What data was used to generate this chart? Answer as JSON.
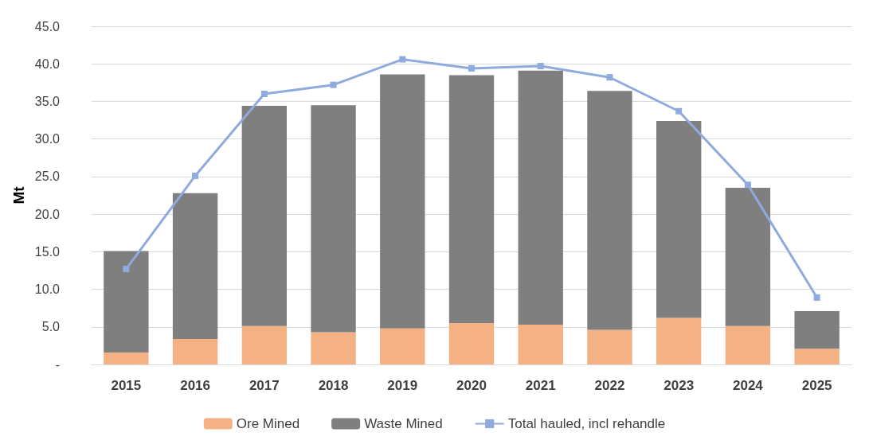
{
  "chart_data": {
    "type": "bar",
    "ylabel": "Mt",
    "stacked": true,
    "grid": "y",
    "legend": "bottom",
    "marker": "square",
    "categories": [
      "2015",
      "2016",
      "2017",
      "2018",
      "2019",
      "2020",
      "2021",
      "2022",
      "2023",
      "2024",
      "2025"
    ],
    "ylim": [
      0,
      45
    ],
    "yticks": [
      {
        "value": 0,
        "label": "-"
      },
      {
        "value": 5,
        "label": "5.0"
      },
      {
        "value": 10,
        "label": "10.0"
      },
      {
        "value": 15,
        "label": "15.0"
      },
      {
        "value": 20,
        "label": "20.0"
      },
      {
        "value": 25,
        "label": "25.0"
      },
      {
        "value": 30,
        "label": "30.0"
      },
      {
        "value": 35,
        "label": "35.0"
      },
      {
        "value": 40,
        "label": "40.0"
      },
      {
        "value": 45,
        "label": "45.0"
      }
    ],
    "series": [
      {
        "name": "Ore Mined",
        "color": "#f4b183",
        "values": [
          1.6,
          3.4,
          5.1,
          4.3,
          4.8,
          5.5,
          5.3,
          4.6,
          6.2,
          5.1,
          2.1
        ]
      },
      {
        "name": "Waste Mined",
        "color": "#7f7f7f",
        "values": [
          13.5,
          19.4,
          29.3,
          30.2,
          33.8,
          33.0,
          33.8,
          31.8,
          26.2,
          18.4,
          5.0
        ]
      },
      {
        "name": "Total hauled, incl rehandle",
        "type": "line",
        "color": "#8faadc",
        "values": [
          12.7,
          25.1,
          36.0,
          37.2,
          40.6,
          39.4,
          39.7,
          38.2,
          33.7,
          23.9,
          8.9
        ]
      }
    ]
  }
}
